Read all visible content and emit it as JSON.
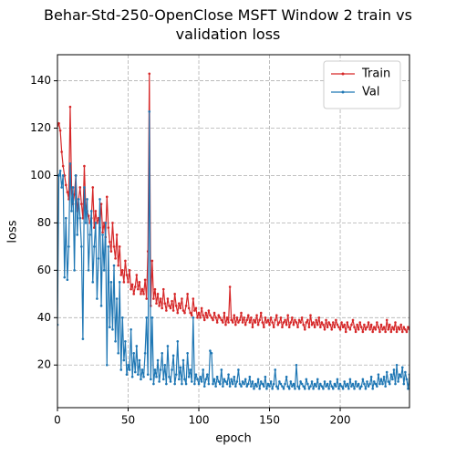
{
  "chart_data": {
    "type": "line",
    "title": "Behar-Std-250-OpenClose MSFT Window 2 train vs validation loss",
    "xlabel": "epoch",
    "ylabel": "loss",
    "x": [
      0,
      1,
      2,
      3,
      4,
      5,
      6,
      7,
      8,
      9,
      10,
      11,
      12,
      13,
      14,
      15,
      16,
      17,
      18,
      19,
      20,
      21,
      22,
      23,
      24,
      25,
      26,
      27,
      28,
      29,
      30,
      31,
      32,
      33,
      34,
      35,
      36,
      37,
      38,
      39,
      40,
      41,
      42,
      43,
      44,
      45,
      46,
      47,
      48,
      49,
      50,
      51,
      52,
      53,
      54,
      55,
      56,
      57,
      58,
      59,
      60,
      61,
      62,
      63,
      64,
      65,
      66,
      67,
      68,
      69,
      70,
      71,
      72,
      73,
      74,
      75,
      76,
      77,
      78,
      79,
      80,
      81,
      82,
      83,
      84,
      85,
      86,
      87,
      88,
      89,
      90,
      91,
      92,
      93,
      94,
      95,
      96,
      97,
      98,
      99,
      100,
      101,
      102,
      103,
      104,
      105,
      106,
      107,
      108,
      109,
      110,
      111,
      112,
      113,
      114,
      115,
      116,
      117,
      118,
      119,
      120,
      121,
      122,
      123,
      124,
      125,
      126,
      127,
      128,
      129,
      130,
      131,
      132,
      133,
      134,
      135,
      136,
      137,
      138,
      139,
      140,
      141,
      142,
      143,
      144,
      145,
      146,
      147,
      148,
      149,
      150,
      151,
      152,
      153,
      154,
      155,
      156,
      157,
      158,
      159,
      160,
      161,
      162,
      163,
      164,
      165,
      166,
      167,
      168,
      169,
      170,
      171,
      172,
      173,
      174,
      175,
      176,
      177,
      178,
      179,
      180,
      181,
      182,
      183,
      184,
      185,
      186,
      187,
      188,
      189,
      190,
      191,
      192,
      193,
      194,
      195,
      196,
      197,
      198,
      199,
      200,
      201,
      202,
      203,
      204,
      205,
      206,
      207,
      208,
      209,
      210,
      211,
      212,
      213,
      214,
      215,
      216,
      217,
      218,
      219,
      220,
      221,
      222,
      223,
      224,
      225,
      226,
      227,
      228,
      229,
      230,
      231,
      232,
      233,
      234,
      235,
      236,
      237,
      238,
      239,
      240,
      241,
      242,
      243,
      244,
      245,
      246,
      247,
      248,
      249
    ],
    "series": [
      {
        "name": "Train",
        "color": "#d62728",
        "values": [
          121,
          122,
          119,
          110,
          104,
          100,
          96,
          93,
          90,
          129,
          95,
          88,
          92,
          100,
          85,
          90,
          95,
          88,
          82,
          104,
          86,
          85,
          83,
          80,
          82,
          95,
          78,
          85,
          80,
          82,
          78,
          88,
          76,
          80,
          74,
          91,
          78,
          72,
          68,
          80,
          70,
          65,
          75,
          62,
          70,
          58,
          60,
          55,
          64,
          58,
          55,
          60,
          52,
          54,
          50,
          53,
          58,
          52,
          55,
          50,
          52,
          50,
          56,
          48,
          68,
          143,
          45,
          64,
          48,
          52,
          46,
          50,
          45,
          48,
          44,
          52,
          46,
          43,
          48,
          45,
          44,
          47,
          43,
          50,
          45,
          42,
          46,
          44,
          48,
          43,
          42,
          45,
          50,
          44,
          42,
          41,
          48,
          43,
          44,
          40,
          42,
          40,
          44,
          41,
          39,
          42,
          40,
          43,
          41,
          40,
          39,
          42,
          40,
          38,
          41,
          40,
          39,
          38,
          42,
          37,
          40,
          38,
          53,
          39,
          38,
          41,
          37,
          40,
          38,
          39,
          42,
          38,
          40,
          37,
          39,
          41,
          38,
          40,
          36,
          39,
          38,
          41,
          37,
          39,
          42,
          38,
          36,
          40,
          38,
          39,
          37,
          40,
          38,
          36,
          39,
          41,
          37,
          38,
          40,
          36,
          38,
          39,
          37,
          41,
          36,
          38,
          40,
          37,
          39,
          38,
          36,
          39,
          38,
          40,
          37,
          35,
          38,
          39,
          36,
          41,
          37,
          38,
          36,
          39,
          37,
          40,
          36,
          38,
          37,
          35,
          39,
          36,
          38,
          37,
          35,
          38,
          36,
          39,
          37,
          36,
          35,
          38,
          36,
          37,
          34,
          38,
          36,
          35,
          37,
          39,
          36,
          34,
          37,
          35,
          38,
          36,
          34,
          37,
          35,
          36,
          38,
          35,
          37,
          34,
          36,
          35,
          38,
          36,
          34,
          37,
          35,
          36,
          34,
          39,
          35,
          37,
          34,
          36,
          35,
          38,
          34,
          36,
          35,
          37,
          34,
          36,
          35,
          34,
          36,
          35
        ]
      },
      {
        "name": "Val",
        "color": "#1f77b4",
        "values": [
          37,
          100,
          102,
          95,
          100,
          57,
          82,
          56,
          70,
          105,
          85,
          95,
          60,
          100,
          75,
          90,
          82,
          70,
          31,
          95,
          80,
          90,
          60,
          75,
          85,
          55,
          70,
          80,
          48,
          65,
          90,
          45,
          75,
          60,
          80,
          20,
          70,
          36,
          55,
          35,
          62,
          30,
          48,
          25,
          55,
          18,
          40,
          22,
          30,
          16,
          20,
          18,
          35,
          15,
          25,
          17,
          28,
          16,
          22,
          14,
          18,
          15,
          25,
          40,
          16,
          127,
          14,
          40,
          12,
          18,
          15,
          22,
          13,
          18,
          25,
          14,
          20,
          12,
          28,
          15,
          13,
          18,
          24,
          12,
          16,
          30,
          14,
          19,
          12,
          22,
          14,
          12,
          25,
          15,
          18,
          13,
          40,
          12,
          16,
          14,
          12,
          15,
          13,
          18,
          11,
          14,
          16,
          12,
          26,
          25,
          12,
          14,
          11,
          15,
          13,
          12,
          18,
          11,
          14,
          13,
          12,
          16,
          11,
          14,
          12,
          15,
          11,
          13,
          18,
          12,
          11,
          13,
          12,
          14,
          11,
          12,
          15,
          11,
          13,
          10,
          12,
          11,
          14,
          10,
          13,
          12,
          11,
          15,
          10,
          12,
          11,
          13,
          10,
          12,
          18,
          11,
          10,
          13,
          12,
          11,
          10,
          12,
          15,
          11,
          10,
          13,
          11,
          12,
          10,
          20,
          11,
          10,
          13,
          12,
          11,
          10,
          14,
          12,
          10,
          11,
          13,
          10,
          12,
          11,
          14,
          10,
          12,
          11,
          10,
          13,
          11,
          12,
          10,
          13,
          11,
          10,
          12,
          11,
          14,
          10,
          12,
          11,
          10,
          13,
          11,
          12,
          10,
          14,
          11,
          12,
          10,
          13,
          11,
          12,
          10,
          11,
          14,
          12,
          10,
          13,
          11,
          12,
          15,
          10,
          13,
          12,
          11,
          16,
          12,
          14,
          12,
          15,
          11,
          17,
          13,
          12,
          16,
          14,
          18,
          12,
          20,
          13,
          16,
          15,
          19,
          12,
          17,
          14,
          10,
          16
        ]
      }
    ],
    "xlim": [
      0,
      249
    ],
    "ylim": [
      2,
      151
    ],
    "xticks": [
      0,
      50,
      100,
      150,
      200
    ],
    "yticks": [
      20,
      40,
      60,
      80,
      100,
      120,
      140
    ],
    "grid": true,
    "legend": "upper right"
  }
}
